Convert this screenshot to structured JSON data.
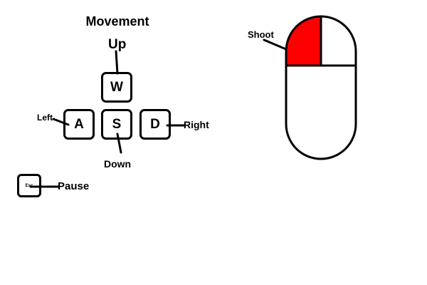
{
  "movement": {
    "title": "Movement",
    "keys": {
      "up": "W",
      "left": "A",
      "down": "S",
      "right": "D"
    },
    "labels": {
      "up": "Up",
      "left": "Left",
      "down": "Down",
      "right": "Right"
    }
  },
  "pause": {
    "key": "Esc",
    "label": "Pause"
  },
  "mouse": {
    "shoot_label": "Shoot",
    "highlight_color": "#ff0000",
    "highlighted_button": "left"
  },
  "colors": {
    "outline": "#000000",
    "background": "#ffffff"
  }
}
